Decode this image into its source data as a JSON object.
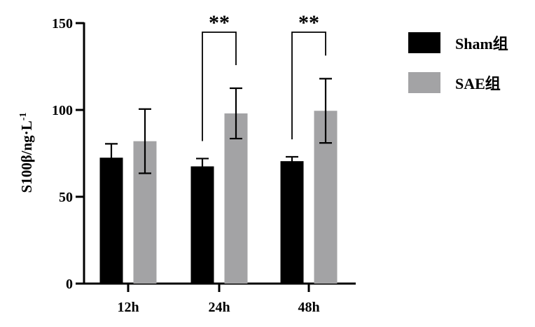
{
  "chart_data": {
    "type": "bar",
    "categories": [
      "12h",
      "24h",
      "48h"
    ],
    "series": [
      {
        "name": "Sham组",
        "color": "#000000",
        "values": [
          72.5,
          67.5,
          70.5
        ],
        "errors": [
          8,
          4.5,
          2.5
        ]
      },
      {
        "name": "SAE组",
        "color": "#a3a3a5",
        "values": [
          82,
          98,
          99.5
        ],
        "errors": [
          18.5,
          14.5,
          18.5
        ]
      }
    ],
    "significance": [
      {
        "category": "24h",
        "label": "**"
      },
      {
        "category": "48h",
        "label": "**"
      }
    ],
    "ylabel": "S100β/ng·L",
    "ylabel_superscript": "-1",
    "ylim": [
      0,
      150
    ],
    "yticks": [
      0,
      50,
      100,
      150
    ],
    "grid": false,
    "legend_position": "top-right"
  }
}
